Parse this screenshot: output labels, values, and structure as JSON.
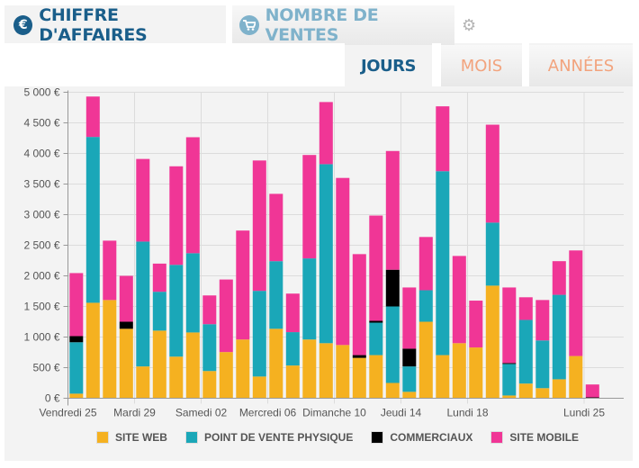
{
  "header": {
    "tabs": [
      {
        "label": "CHIFFRE D'AFFAIRES",
        "icon": "euro-icon",
        "glyph": "€",
        "active": true
      },
      {
        "label": "NOMBRE DE VENTES",
        "icon": "cart-icon",
        "glyph": "🛒",
        "active": false
      }
    ],
    "settings_icon": "⚙"
  },
  "period_tabs": [
    {
      "label": "JOURS",
      "active": true
    },
    {
      "label": "MOIS",
      "active": false
    },
    {
      "label": "ANNÉES",
      "active": false
    }
  ],
  "colors": {
    "site_web": "#f5b120",
    "point_de_vente": "#1aa7b8",
    "commerciaux": "#000000",
    "site_mobile": "#f03696",
    "accent": "#1a5e8a"
  },
  "chart_data": {
    "type": "bar",
    "stacked": true,
    "title": "",
    "xlabel": "",
    "ylabel": "",
    "ylim": [
      0,
      5000
    ],
    "y_ticks": [
      "0 €",
      "500 €",
      "1 000 €",
      "1 500 €",
      "2 000 €",
      "2 500 €",
      "3 000 €",
      "3 500 €",
      "4 000 €",
      "4 500 €",
      "5 000 €"
    ],
    "y_tick_values": [
      0,
      500,
      1000,
      1500,
      2000,
      2500,
      3000,
      3500,
      4000,
      4500,
      5000
    ],
    "x_tick_labels": [
      {
        "index": 0,
        "label": "Vendredi 25"
      },
      {
        "index": 4,
        "label": "Mardi 29"
      },
      {
        "index": 8,
        "label": "Samedi 02"
      },
      {
        "index": 12,
        "label": "Mercredi 06"
      },
      {
        "index": 16,
        "label": "Dimanche 10"
      },
      {
        "index": 20,
        "label": "Jeudi 14"
      },
      {
        "index": 24,
        "label": "Lundi 18"
      },
      {
        "index": 31,
        "label": "Lundi 25"
      }
    ],
    "grid": true,
    "legend_position": "bottom",
    "series": [
      {
        "name": "SITE WEB",
        "color": "#f5b120",
        "values": [
          75,
          1560,
          1605,
          1135,
          520,
          1105,
          680,
          1075,
          445,
          755,
          960,
          355,
          1135,
          535,
          960,
          900,
          870,
          660,
          705,
          250,
          105,
          1250,
          705,
          900,
          830,
          1840,
          45,
          240,
          165,
          310,
          690,
          0
        ]
      },
      {
        "name": "POINT DE VENTE PHYSIQUE",
        "color": "#1aa7b8",
        "values": [
          840,
          2710,
          0,
          0,
          2040,
          635,
          1500,
          1295,
          765,
          0,
          0,
          1400,
          1105,
          545,
          1325,
          2925,
          0,
          0,
          530,
          1250,
          415,
          515,
          3005,
          0,
          0,
          1030,
          515,
          1040,
          780,
          1380,
          0,
          0
        ]
      },
      {
        "name": "COMMERCIAUX",
        "color": "#000000",
        "values": [
          100,
          0,
          0,
          115,
          0,
          0,
          0,
          0,
          0,
          0,
          0,
          0,
          0,
          0,
          0,
          0,
          0,
          45,
          30,
          600,
          290,
          0,
          0,
          0,
          0,
          0,
          15,
          0,
          0,
          0,
          0,
          15
        ]
      },
      {
        "name": "SITE MOBILE",
        "color": "#f03696",
        "values": [
          1030,
          660,
          970,
          750,
          1350,
          460,
          1610,
          1895,
          470,
          1185,
          1780,
          2130,
          1100,
          630,
          1690,
          1015,
          2730,
          1650,
          1720,
          1940,
          1000,
          870,
          1060,
          1425,
          765,
          1600,
          1235,
          370,
          660,
          550,
          1725,
          210
        ]
      }
    ]
  }
}
